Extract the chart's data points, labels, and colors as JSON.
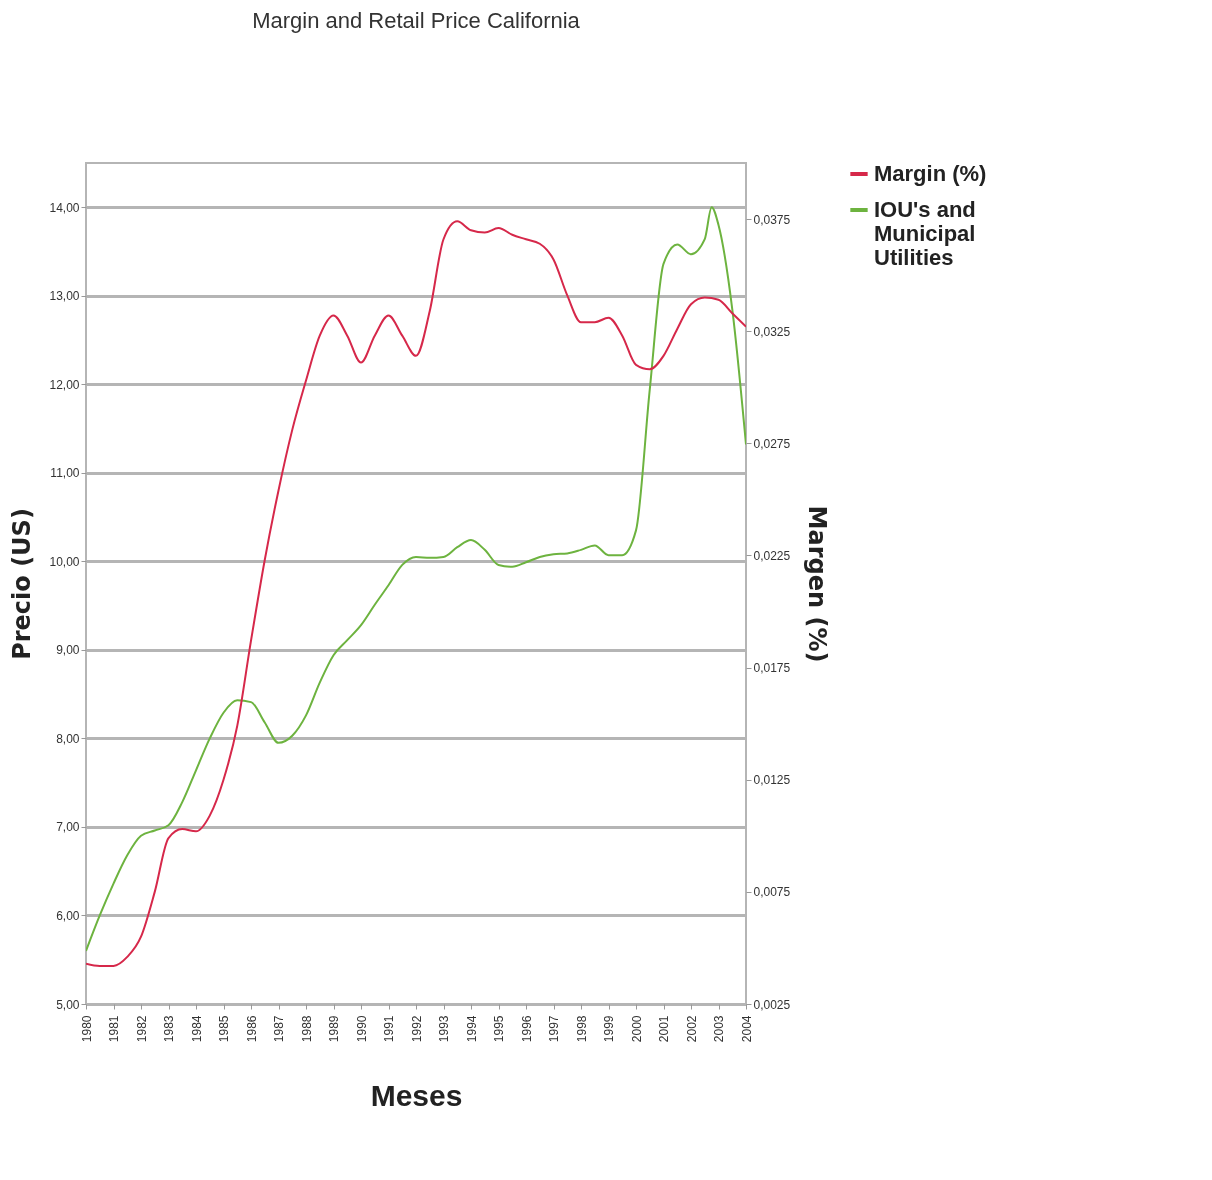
{
  "chart_data": {
    "type": "line",
    "title": "Margin and Retail Price California",
    "xlabel": "Meses",
    "ylabel": "Precio (US)",
    "y2label": "Margen (%)",
    "xlim": [
      1980,
      2004
    ],
    "xticks": [
      1980,
      1981,
      1982,
      1983,
      1984,
      1985,
      1986,
      1987,
      1988,
      1989,
      1990,
      1991,
      1992,
      1993,
      1994,
      1995,
      1996,
      1997,
      1998,
      1999,
      2000,
      2001,
      2002,
      2003,
      2004
    ],
    "ylim": [
      5,
      14.5
    ],
    "yticks": [
      {
        "value": 5,
        "label": "5,00"
      },
      {
        "value": 6,
        "label": "6,00"
      },
      {
        "value": 7,
        "label": "7,00"
      },
      {
        "value": 8,
        "label": "8,00"
      },
      {
        "value": 9,
        "label": "9,00"
      },
      {
        "value": 10,
        "label": "10,00"
      },
      {
        "value": 11,
        "label": "11,00"
      },
      {
        "value": 12,
        "label": "12,00"
      },
      {
        "value": 13,
        "label": "13,00"
      },
      {
        "value": 14,
        "label": "14,00"
      }
    ],
    "y2lim": [
      0.0025,
      0.04
    ],
    "y2ticks": [
      {
        "value": 0.0025,
        "label": "0,0025"
      },
      {
        "value": 0.0075,
        "label": "0,0075"
      },
      {
        "value": 0.0125,
        "label": "0,0125"
      },
      {
        "value": 0.0175,
        "label": "0,0175"
      },
      {
        "value": 0.0225,
        "label": "0,0225"
      },
      {
        "value": 0.0275,
        "label": "0,0275"
      },
      {
        "value": 0.0325,
        "label": "0,0325"
      },
      {
        "value": 0.0375,
        "label": "0,0375"
      }
    ],
    "grid": "y",
    "legend": "top right",
    "series": [
      {
        "name": "Margin (%)",
        "color": "#d6284a",
        "axis": "y2",
        "x": [
          1980,
          1980.5,
          1981,
          1981.5,
          1982,
          1982.5,
          1983,
          1983.5,
          1984,
          1984.5,
          1985,
          1985.5,
          1986,
          1986.5,
          1987,
          1987.5,
          1988,
          1988.5,
          1989,
          1989.5,
          1990,
          1990.5,
          1991,
          1991.5,
          1992,
          1992.5,
          1993,
          1993.5,
          1994,
          1994.5,
          1995,
          1995.5,
          1996,
          1996.5,
          1997,
          1997.5,
          1998,
          1998.5,
          1999,
          1999.5,
          2000,
          2000.5,
          2001,
          2001.5,
          2002,
          2002.5,
          2003,
          2003.5,
          2004
        ],
        "values": [
          0.0043,
          0.0042,
          0.0042,
          0.0046,
          0.0055,
          0.0075,
          0.0099,
          0.0103,
          0.0102,
          0.0109,
          0.0125,
          0.0149,
          0.0187,
          0.0223,
          0.0254,
          0.0281,
          0.0303,
          0.0323,
          0.0332,
          0.0323,
          0.0311,
          0.0323,
          0.0332,
          0.0323,
          0.0314,
          0.0334,
          0.0366,
          0.0374,
          0.037,
          0.0369,
          0.0371,
          0.0368,
          0.0366,
          0.0364,
          0.0357,
          0.0341,
          0.0329,
          0.0329,
          0.0331,
          0.0323,
          0.031,
          0.0308,
          0.0314,
          0.0326,
          0.0337,
          0.034,
          0.0339,
          0.0333,
          0.0327
        ]
      },
      {
        "name": "IOU's and Municipal Utilities",
        "color": "#6db33f",
        "axis": "y",
        "x": [
          1980,
          1980.5,
          1981,
          1981.5,
          1982,
          1982.5,
          1983,
          1983.5,
          1984,
          1984.5,
          1985,
          1985.5,
          1986,
          1986.5,
          1987,
          1987.5,
          1988,
          1988.5,
          1989,
          1989.5,
          1990,
          1990.5,
          1991,
          1991.5,
          1992,
          1992.5,
          1993,
          1993.5,
          1994,
          1994.5,
          1995,
          1995.5,
          1996,
          1996.5,
          1997,
          1997.5,
          1998,
          1998.5,
          1999,
          1999.5,
          2000,
          2000.5,
          2001,
          2001.5,
          2002,
          2002.5,
          2002.75,
          2003,
          2003.5,
          2004
        ],
        "values": [
          5.6,
          6.0,
          6.36,
          6.68,
          6.9,
          6.96,
          7.02,
          7.28,
          7.64,
          8.0,
          8.29,
          8.43,
          8.41,
          8.18,
          7.95,
          8.03,
          8.26,
          8.63,
          8.94,
          9.11,
          9.28,
          9.51,
          9.73,
          9.96,
          10.05,
          10.04,
          10.05,
          10.16,
          10.24,
          10.13,
          9.96,
          9.94,
          9.99,
          10.05,
          10.08,
          10.09,
          10.13,
          10.18,
          10.07,
          10.07,
          10.35,
          11.94,
          13.36,
          13.58,
          13.47,
          13.64,
          14.0,
          13.8,
          12.85,
          11.32
        ]
      }
    ]
  }
}
